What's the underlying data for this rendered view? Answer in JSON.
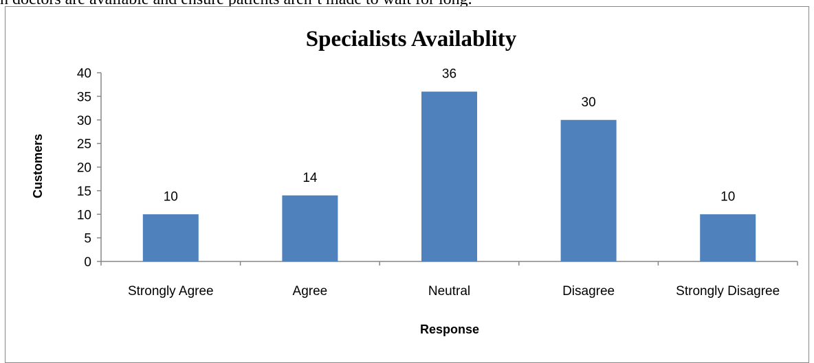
{
  "page": {
    "context_text": "h doctors are available and ensure patients aren’t made to wait for long."
  },
  "chart_data": {
    "type": "bar",
    "title": "Specialists Availablity",
    "xlabel": "Response",
    "ylabel": "Customers",
    "categories": [
      "Strongly Agree",
      "Agree",
      "Neutral",
      "Disagree",
      "Strongly Disagree"
    ],
    "values": [
      10,
      14,
      36,
      30,
      10
    ],
    "ylim": [
      0,
      40
    ],
    "yticks": [
      0,
      5,
      10,
      15,
      20,
      25,
      30,
      35,
      40
    ],
    "grid": false,
    "legend": "none",
    "data_labels": true,
    "bar_color": "#4F81BD",
    "axis_color": "#868686"
  }
}
